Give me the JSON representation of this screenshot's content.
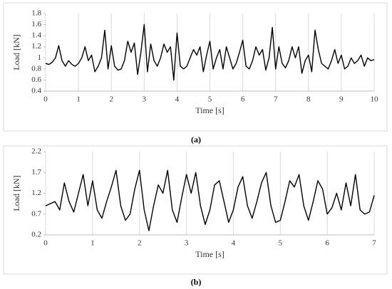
{
  "chart_data": [
    {
      "type": "line",
      "caption": "(a)",
      "xlabel": "Time [s]",
      "ylabel": "Load [kN]",
      "xlim": [
        0,
        10
      ],
      "xticks": [
        0,
        1,
        2,
        3,
        4,
        5,
        6,
        7,
        8,
        9,
        10
      ],
      "ylim": [
        0.4,
        1.8
      ],
      "yticks": [
        0.4,
        0.6,
        0.8,
        1,
        1.2,
        1.4,
        1.6,
        1.8
      ],
      "grid": "x",
      "x": [
        0,
        0.1,
        0.2,
        0.3,
        0.4,
        0.5,
        0.6,
        0.7,
        0.8,
        0.9,
        1,
        1.1,
        1.2,
        1.3,
        1.4,
        1.5,
        1.6,
        1.7,
        1.8,
        1.9,
        2,
        2.1,
        2.2,
        2.3,
        2.4,
        2.5,
        2.6,
        2.7,
        2.8,
        2.9,
        3,
        3.1,
        3.2,
        3.3,
        3.4,
        3.5,
        3.6,
        3.7,
        3.8,
        3.9,
        4,
        4.1,
        4.2,
        4.3,
        4.4,
        4.5,
        4.6,
        4.7,
        4.8,
        4.9,
        5,
        5.1,
        5.2,
        5.3,
        5.4,
        5.5,
        5.6,
        5.7,
        5.8,
        5.9,
        6,
        6.1,
        6.2,
        6.3,
        6.4,
        6.5,
        6.6,
        6.7,
        6.8,
        6.9,
        7,
        7.1,
        7.2,
        7.3,
        7.4,
        7.5,
        7.6,
        7.7,
        7.8,
        7.9,
        8,
        8.1,
        8.2,
        8.3,
        8.4,
        8.5,
        8.6,
        8.7,
        8.8,
        8.9,
        9,
        9.1,
        9.2,
        9.3,
        9.4,
        9.5,
        9.6,
        9.7,
        9.8,
        9.9,
        10
      ],
      "series": [
        {
          "color": "#000000",
          "values": [
            0.9,
            0.88,
            0.92,
            1.0,
            1.22,
            0.95,
            0.85,
            0.95,
            0.88,
            0.85,
            0.9,
            1.0,
            1.2,
            0.95,
            1.05,
            0.75,
            0.85,
            1.0,
            1.5,
            0.8,
            1.22,
            0.85,
            0.78,
            0.8,
            0.95,
            1.3,
            1.1,
            1.27,
            0.7,
            1.1,
            1.6,
            0.75,
            1.25,
            0.95,
            0.85,
            1.0,
            1.25,
            1.1,
            1.2,
            0.6,
            1.45,
            0.85,
            0.8,
            0.85,
            1.0,
            1.15,
            1.05,
            1.2,
            0.75,
            1.05,
            1.3,
            0.8,
            1.0,
            1.15,
            0.8,
            1.2,
            1.0,
            0.8,
            0.9,
            1.1,
            1.32,
            0.85,
            0.8,
            0.95,
            1.2,
            1.05,
            1.15,
            0.78,
            1.0,
            1.55,
            0.8,
            1.2,
            0.9,
            0.82,
            0.95,
            1.2,
            1.0,
            1.2,
            0.72,
            0.95,
            1.05,
            0.75,
            1.5,
            1.15,
            0.9,
            0.85,
            0.8,
            0.95,
            1.15,
            0.9,
            1.05,
            0.8,
            0.85,
            1.0,
            0.9,
            0.95,
            1.05,
            0.85,
            1.0,
            0.95,
            0.97
          ]
        }
      ]
    },
    {
      "type": "line",
      "caption": "(b)",
      "xlabel": "Time [s]",
      "ylabel": "Load [kN]",
      "xlim": [
        0,
        7
      ],
      "xticks": [
        0,
        1,
        2,
        3,
        4,
        5,
        6,
        7
      ],
      "ylim": [
        0.2,
        2.2
      ],
      "yticks": [
        0.2,
        0.7,
        1.2,
        1.7,
        2.2
      ],
      "grid": "x",
      "x": [
        0,
        0.1,
        0.2,
        0.3,
        0.4,
        0.5,
        0.6,
        0.7,
        0.8,
        0.9,
        1,
        1.1,
        1.2,
        1.3,
        1.4,
        1.5,
        1.6,
        1.7,
        1.8,
        1.9,
        2,
        2.1,
        2.2,
        2.3,
        2.4,
        2.5,
        2.6,
        2.7,
        2.8,
        2.9,
        3,
        3.1,
        3.2,
        3.3,
        3.4,
        3.5,
        3.6,
        3.7,
        3.8,
        3.9,
        4,
        4.1,
        4.2,
        4.3,
        4.4,
        4.5,
        4.6,
        4.7,
        4.8,
        4.9,
        5,
        5.1,
        5.2,
        5.3,
        5.4,
        5.5,
        5.6,
        5.7,
        5.8,
        5.9,
        6,
        6.1,
        6.2,
        6.3,
        6.4,
        6.5,
        6.6,
        6.7,
        6.8,
        6.9,
        7
      ],
      "series": [
        {
          "color": "#000000",
          "values": [
            0.9,
            0.95,
            1.0,
            0.8,
            1.45,
            1.0,
            0.75,
            1.2,
            1.65,
            0.9,
            1.5,
            0.8,
            0.6,
            1.0,
            1.35,
            1.75,
            0.9,
            0.55,
            0.7,
            1.3,
            1.75,
            0.8,
            0.3,
            0.9,
            1.4,
            1.2,
            1.75,
            0.8,
            0.5,
            1.1,
            1.65,
            1.2,
            1.7,
            0.9,
            0.45,
            0.8,
            1.4,
            1.5,
            1.0,
            0.5,
            0.8,
            1.35,
            1.6,
            0.9,
            0.6,
            1.0,
            1.45,
            1.7,
            0.9,
            0.5,
            0.55,
            1.0,
            1.5,
            1.35,
            1.65,
            0.9,
            0.55,
            1.0,
            1.5,
            1.3,
            0.7,
            0.85,
            1.2,
            0.8,
            1.45,
            0.9,
            1.65,
            0.8,
            0.7,
            0.75,
            1.15
          ]
        }
      ]
    }
  ]
}
